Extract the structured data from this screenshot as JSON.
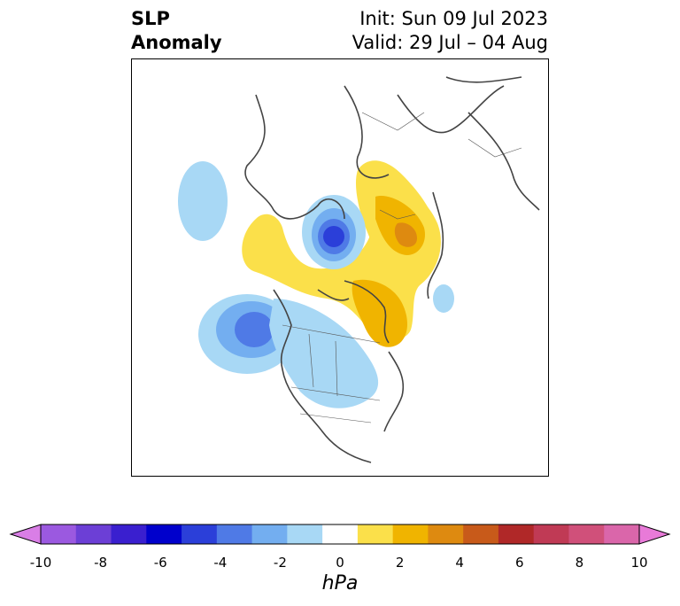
{
  "title": {
    "left_line1": "SLP",
    "left_line2": "Anomaly",
    "init": "Init: Sun 09 Jul 2023",
    "valid": "Valid: 29 Jul – 04 Aug"
  },
  "colorbar": {
    "unit_label": "hPa",
    "ticks": [
      "-10",
      "-8",
      "-6",
      "-4",
      "-2",
      "0",
      "2",
      "4",
      "6",
      "8",
      "10"
    ],
    "colors": [
      "#d97ee6",
      "#9b59e0",
      "#6c3fd6",
      "#3a1fcf",
      "#0000cc",
      "#2b3fd9",
      "#4f7ae6",
      "#73aef0",
      "#a8d8f5",
      "#ffffff",
      "#fbe04a",
      "#f0b400",
      "#de8a10",
      "#c85a1a",
      "#b02828",
      "#c03a55",
      "#d0507a",
      "#da66aa",
      "#e87ad8"
    ]
  },
  "map": {
    "projection": "polar stereographic, North America / Arctic",
    "anomalies": [
      {
        "name": "pacific-low",
        "sign": "negative",
        "min_hpa": -4
      },
      {
        "name": "arctic-low",
        "sign": "negative",
        "min_hpa": -6
      },
      {
        "name": "north-america-negative",
        "sign": "negative",
        "min_hpa": -2
      },
      {
        "name": "greenland-high",
        "sign": "positive",
        "max_hpa": 4
      },
      {
        "name": "scandinavia-high",
        "sign": "positive",
        "max_hpa": 4
      },
      {
        "name": "arctic-ring-high",
        "sign": "positive",
        "max_hpa": 2
      }
    ]
  }
}
